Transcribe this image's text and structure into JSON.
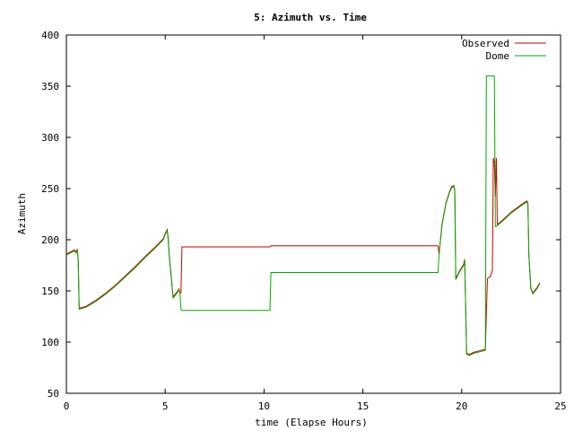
{
  "chart_data": {
    "type": "line",
    "title": "5: Azimuth vs. Time",
    "xlabel": "time (Elapse Hours)",
    "ylabel": "Azimuth",
    "xlim": [
      0,
      25
    ],
    "ylim": [
      50,
      400
    ],
    "xticks": [
      0,
      5,
      10,
      15,
      20,
      25
    ],
    "yticks": [
      50,
      100,
      150,
      200,
      250,
      300,
      350,
      400
    ],
    "grid": false,
    "legend_position": "top-right",
    "series": [
      {
        "name": "Observed",
        "color": "#cc0000",
        "x": [
          0.0,
          0.4,
          0.5,
          0.55,
          0.6,
          0.65,
          1.0,
          1.5,
          2.0,
          2.5,
          3.0,
          3.5,
          4.0,
          4.5,
          4.9,
          5.0,
          5.1,
          5.15,
          5.2,
          5.4,
          5.6,
          5.7,
          5.75,
          5.8,
          5.85,
          10.3,
          10.35,
          18.7,
          18.8,
          18.85,
          19.0,
          19.2,
          19.4,
          19.5,
          19.6,
          19.65,
          19.7,
          19.9,
          20.1,
          20.15,
          20.25,
          20.4,
          20.6,
          20.8,
          21.0,
          21.2,
          21.25,
          21.3,
          21.35,
          21.45,
          21.55,
          21.6,
          21.65,
          21.7,
          21.75,
          21.8,
          22.0,
          22.5,
          23.0,
          23.3,
          23.35,
          23.4,
          23.5,
          23.6,
          23.8,
          23.95
        ],
        "y": [
          186,
          190,
          188,
          191,
          180,
          133,
          135,
          141,
          148,
          156,
          165,
          174,
          184,
          193,
          201,
          206,
          210,
          202,
          186,
          144,
          149,
          152,
          148,
          148,
          193,
          193,
          194,
          194,
          194,
          186,
          215,
          236,
          248,
          252,
          253,
          248,
          162,
          170,
          176,
          181,
          89,
          88,
          90,
          91,
          92,
          93,
          128,
          162,
          163,
          164,
          170,
          280,
          275,
          242,
          280,
          215,
          218,
          227,
          234,
          238,
          236,
          185,
          153,
          148,
          153,
          158
        ]
      },
      {
        "name": "Dome",
        "color": "#00aa00",
        "x": [
          0.0,
          0.4,
          0.5,
          0.55,
          0.6,
          0.65,
          1.0,
          1.5,
          2.0,
          2.5,
          3.0,
          3.5,
          4.0,
          4.5,
          4.9,
          5.0,
          5.1,
          5.15,
          5.2,
          5.4,
          5.6,
          5.7,
          5.75,
          5.8,
          5.85,
          10.3,
          10.35,
          18.7,
          18.8,
          18.85,
          19.0,
          19.2,
          19.4,
          19.5,
          19.6,
          19.65,
          19.7,
          19.9,
          20.1,
          20.15,
          20.25,
          20.4,
          20.6,
          20.8,
          21.0,
          21.2,
          21.25,
          21.3,
          21.35,
          21.45,
          21.55,
          21.6,
          21.65,
          21.7,
          21.75,
          21.8,
          22.0,
          22.5,
          23.0,
          23.3,
          23.35,
          23.4,
          23.5,
          23.6,
          23.8,
          23.95
        ],
        "y": [
          185,
          189,
          187,
          190,
          180,
          132,
          134,
          140,
          147,
          155,
          164,
          173,
          183,
          192,
          200,
          205,
          209,
          201,
          185,
          143,
          148,
          151,
          147,
          132,
          131,
          131,
          168,
          168,
          168,
          185,
          214,
          235,
          247,
          251,
          252,
          247,
          161,
          169,
          175,
          180,
          88,
          87,
          89,
          90,
          91,
          92,
          360,
          360,
          360,
          360,
          360,
          360,
          360,
          213,
          213,
          214,
          217,
          226,
          233,
          237,
          235,
          184,
          152,
          147,
          152,
          157
        ]
      }
    ]
  }
}
